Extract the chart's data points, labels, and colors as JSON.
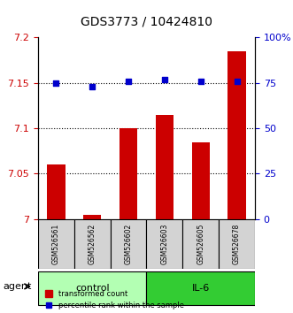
{
  "title": "GDS3773 / 10424810",
  "samples": [
    "GSM526561",
    "GSM526562",
    "GSM526602",
    "GSM526603",
    "GSM526605",
    "GSM526678"
  ],
  "bar_values": [
    7.06,
    7.005,
    7.1,
    7.115,
    7.085,
    7.185
  ],
  "percentile_values": [
    75,
    73,
    76,
    77,
    76,
    76
  ],
  "bar_color": "#cc0000",
  "dot_color": "#0000cc",
  "ylim_left": [
    7.0,
    7.2
  ],
  "ylim_right": [
    0,
    100
  ],
  "yticks_left": [
    7.0,
    7.05,
    7.1,
    7.15,
    7.2
  ],
  "yticks_right": [
    0,
    25,
    50,
    75,
    100
  ],
  "ytick_labels_left": [
    "7",
    "7.05",
    "7.1",
    "7.15",
    "7.2"
  ],
  "ytick_labels_right": [
    "0",
    "25",
    "50",
    "75",
    "100%"
  ],
  "groups": [
    {
      "label": "control",
      "indices": [
        0,
        1,
        2
      ],
      "color": "#ccffcc"
    },
    {
      "label": "IL-6",
      "indices": [
        3,
        4,
        5
      ],
      "color": "#00cc00"
    }
  ],
  "agent_label": "agent",
  "legend_bar_label": "transformed count",
  "legend_dot_label": "percentile rank within the sample",
  "grid_color": "#000000",
  "background_color": "#ffffff"
}
